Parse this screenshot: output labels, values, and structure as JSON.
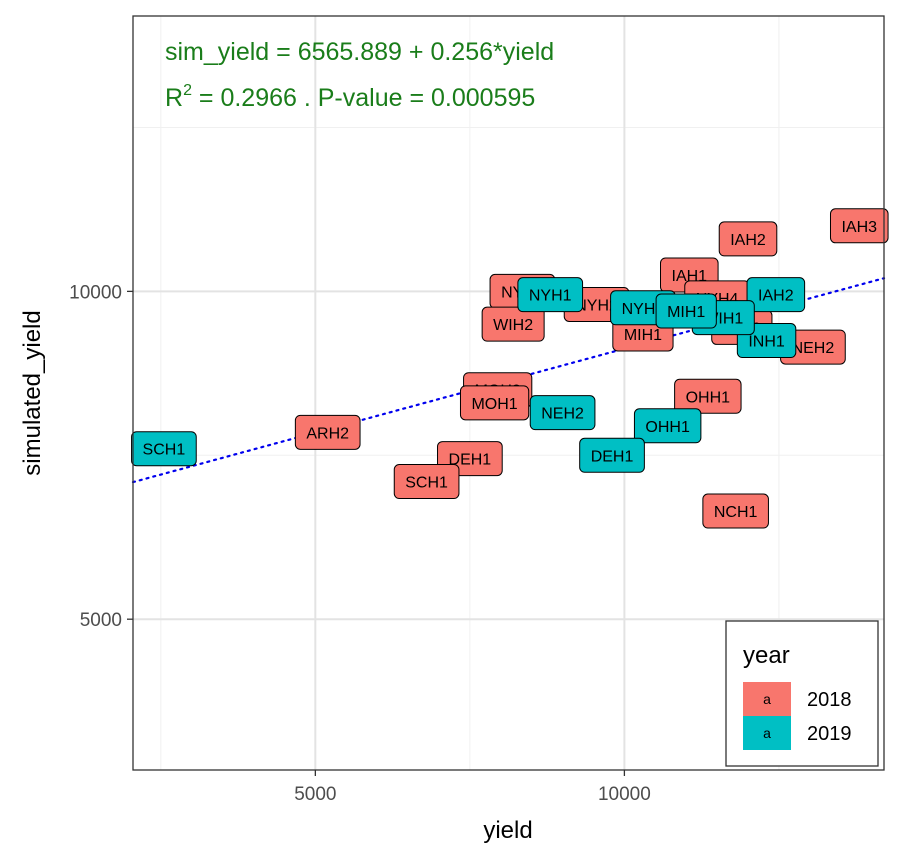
{
  "chart_data": {
    "type": "scatter",
    "xlabel": "yield",
    "ylabel": "simulated_yield",
    "xlim": [
      2050,
      14200
    ],
    "ylim": [
      2700,
      14200
    ],
    "x_ticks": [
      5000,
      10000
    ],
    "y_ticks": [
      5000,
      10000
    ],
    "x_tick_labels": [
      "5000",
      "10000"
    ],
    "y_tick_labels": [
      "5000",
      "10000"
    ],
    "grid": true,
    "annotation": {
      "line1": "sim_yield = 6565.889 + 0.256*yield",
      "line2_r": "R",
      "line2_sup": "2",
      "line2_rest": " = 0.2966 . P-value = 0.000595"
    },
    "fit": {
      "intercept": 6565.889,
      "slope": 0.256,
      "color": "#0000ee"
    },
    "legend": {
      "title": "year",
      "position": "bottom-right",
      "key_letter": "a",
      "entries": [
        {
          "name": "2018",
          "color": "#f8766d"
        },
        {
          "name": "2019",
          "color": "#00bfc4"
        }
      ]
    },
    "series": [
      {
        "name": "2018",
        "color": "#f8766d",
        "points": [
          {
            "label": "IAH3",
            "x": 13800,
            "y": 11000
          },
          {
            "label": "IAH2",
            "x": 12000,
            "y": 10800
          },
          {
            "label": "IAH1",
            "x": 11050,
            "y": 10250
          },
          {
            "label": "NYH1",
            "x": 8350,
            "y": 10000
          },
          {
            "label": "NYH2",
            "x": 9550,
            "y": 9800
          },
          {
            "label": "WIH2",
            "x": 8200,
            "y": 9500
          },
          {
            "label": "MIH1",
            "x": 10300,
            "y": 9350
          },
          {
            "label": "NYH4",
            "x": 11500,
            "y": 9900
          },
          {
            "label": "MIH2",
            "x": 11900,
            "y": 9450
          },
          {
            "label": "NEH2",
            "x": 13050,
            "y": 9150
          },
          {
            "label": "MOH2",
            "x": 7950,
            "y": 8500
          },
          {
            "label": "MOH1",
            "x": 7900,
            "y": 8300
          },
          {
            "label": "OHH1",
            "x": 11350,
            "y": 8400
          },
          {
            "label": "ARH2",
            "x": 5200,
            "y": 7850
          },
          {
            "label": "DEH1",
            "x": 7500,
            "y": 7450
          },
          {
            "label": "SCH1",
            "x": 6800,
            "y": 7100
          },
          {
            "label": "NCH1",
            "x": 11800,
            "y": 6650
          }
        ]
      },
      {
        "name": "2019",
        "color": "#00bfc4",
        "points": [
          {
            "label": "NYH1",
            "x": 8800,
            "y": 9950
          },
          {
            "label": "NYH3",
            "x": 10300,
            "y": 9750
          },
          {
            "label": "IAH2",
            "x": 12450,
            "y": 9950
          },
          {
            "label": "INH1",
            "x": 12300,
            "y": 9250
          },
          {
            "label": "WIH1",
            "x": 11600,
            "y": 9600
          },
          {
            "label": "NEH2",
            "x": 9000,
            "y": 8150
          },
          {
            "label": "OHH1",
            "x": 10700,
            "y": 7950
          },
          {
            "label": "DEH1",
            "x": 9800,
            "y": 7500
          },
          {
            "label": "SCH1",
            "x": 2550,
            "y": 7600
          },
          {
            "label": "MIH1",
            "x": 11000,
            "y": 9700
          }
        ]
      }
    ]
  }
}
